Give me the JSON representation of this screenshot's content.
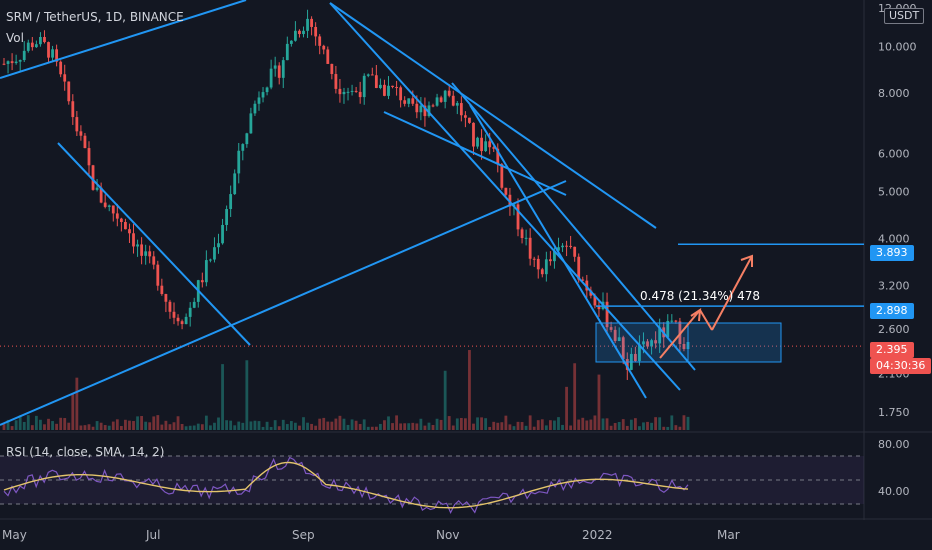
{
  "header": {
    "title": "SRM / TetherUS, 1D, BINANCE",
    "volume_label": "Vol",
    "currency": "USDT"
  },
  "rsi": {
    "label": "RSI (14, close, SMA, 14, 2)",
    "ticks": [
      "80.00",
      "40.00"
    ]
  },
  "measure": {
    "text": "0.478 (21.34%) 478"
  },
  "price_tags": {
    "target": "3.893",
    "resistance": "2.898",
    "last": "2.395",
    "countdown": "04:30:36"
  },
  "colors": {
    "bg": "#131722",
    "up": "#26a69a",
    "down": "#ef5350",
    "line": "#2196f3",
    "arrow": "#f57f64",
    "rsi": "#7e57c2",
    "rsi_ma": "#e3c46b"
  },
  "chart_data": {
    "type": "candlestick",
    "title": "SRM / TetherUS, 1D, BINANCE",
    "y_scale": "log",
    "y_ticks": [
      "12.000",
      "10.000",
      "8.000",
      "6.000",
      "5.000",
      "4.000",
      "3.200",
      "2.600",
      "2.100",
      "1.750"
    ],
    "x_ticks": [
      "May",
      "Jul",
      "Sep",
      "Nov",
      "2022",
      "Mar"
    ],
    "last_price": 2.395,
    "levels": [
      3.893,
      2.898
    ],
    "series": [
      {
        "name": "SRM / TetherUS",
        "approx_close": [
          9.2,
          9.6,
          10.3,
          9.8,
          8.1,
          6.4,
          5.0,
          4.6,
          4.3,
          3.7,
          3.4,
          2.8,
          2.75,
          3.3,
          3.9,
          5.1,
          6.8,
          8.4,
          8.8,
          10.6,
          11.4,
          9.7,
          8.3,
          8.0,
          8.5,
          8.2,
          8.0,
          7.2,
          7.6,
          8.1,
          7.4,
          6.2,
          6.4,
          4.9,
          4.2,
          3.4,
          3.6,
          3.9,
          3.3,
          3.0,
          2.6,
          2.2,
          2.35,
          2.5,
          2.65,
          2.395
        ]
      }
    ]
  }
}
